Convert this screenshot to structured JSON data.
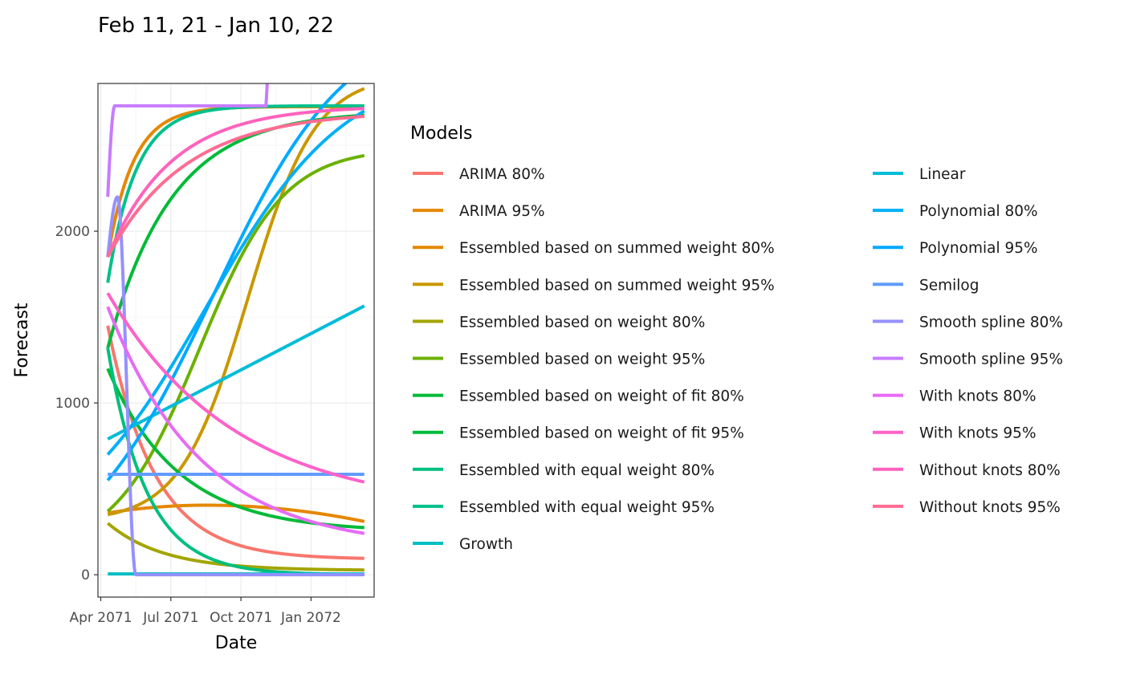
{
  "chart_data": {
    "type": "line",
    "title": "Feb 11, 21 - Jan 10, 22",
    "xlabel": "Date",
    "ylabel": "Forecast",
    "x_ticks": [
      {
        "value": 0,
        "label": "Apr 2071"
      },
      {
        "value": 0.5,
        "label": "Jul 2071"
      },
      {
        "value": 1.0,
        "label": "Oct 2071"
      },
      {
        "value": 1.5,
        "label": "Jan 2072"
      }
    ],
    "x_tick_labels": [
      "Apr 2071",
      "Jul 2071",
      "Oct 2071",
      "Jan 2072"
    ],
    "xlim": [
      -0.02,
      1.95
    ],
    "x_range": [
      0.05,
      1.88
    ],
    "y_ticks": [
      0,
      1000,
      2000
    ],
    "y_tick_labels": [
      "0",
      "1000",
      "2000"
    ],
    "ylim": [
      -130,
      2860
    ],
    "grid": true,
    "legend": {
      "title": "Models",
      "position": "right",
      "columns": 2
    },
    "series": [
      {
        "name": "ARIMA 80%",
        "color": "#F8766D",
        "model": "exp",
        "start": 1450,
        "end": 90,
        "k": 3.0
      },
      {
        "name": "ARIMA 95%",
        "color": "#E58700",
        "model": "exp",
        "start": 1850,
        "end": 2725,
        "k": 5.5
      },
      {
        "name": "Essembled based on summed weight 80%",
        "color": "#E58700",
        "model": "hump",
        "start": 360,
        "peak": 405,
        "peak_x": 0.75,
        "end": 310
      },
      {
        "name": "Essembled based on summed weight 95%",
        "color": "#C99800",
        "model": "sigmoid",
        "start": 350,
        "end": 2830,
        "mid": 1.05,
        "width": 0.24
      },
      {
        "name": "Essembled based on weight 80%",
        "color": "#A3A500",
        "model": "exp",
        "start": 300,
        "end": 25,
        "k": 2.5
      },
      {
        "name": "Essembled based on weight 95%",
        "color": "#6BB100",
        "model": "sigmoid",
        "start": 370,
        "end": 2440,
        "mid": 0.7,
        "width": 0.3
      },
      {
        "name": "Essembled based on weight of fit 80%",
        "color": "#00BA38",
        "model": "exp",
        "start": 1200,
        "end": 250,
        "k": 2.0
      },
      {
        "name": "Essembled based on weight of fit 95%",
        "color": "#00BA38",
        "model": "exp",
        "start": 1320,
        "end": 2700,
        "k": 2.2
      },
      {
        "name": "Essembled with equal weight 80%",
        "color": "#00BF7D",
        "model": "exp",
        "start": 1320,
        "end": 0,
        "k": 3.6
      },
      {
        "name": "Essembled with equal weight 95%",
        "color": "#00C08B",
        "model": "exp",
        "start": 1700,
        "end": 2730,
        "k": 5.0
      },
      {
        "name": "Growth",
        "color": "#00BFC4",
        "model": "const",
        "value": 5
      },
      {
        "name": "Linear",
        "color": "#00BCD8",
        "model": "linear",
        "start": 790,
        "end": 1565
      },
      {
        "name": "Polynomial 80%",
        "color": "#00B0F6",
        "model": "sigmoid",
        "start": 700,
        "end": 2700,
        "mid": 0.75,
        "width": 0.5
      },
      {
        "name": "Polynomial 95%",
        "color": "#00A9FF",
        "model": "sigmoid",
        "start": 550,
        "end": 2950,
        "mid": 0.8,
        "width": 0.48
      },
      {
        "name": "Semilog",
        "color": "#619CFF",
        "model": "const",
        "value": 585
      },
      {
        "name": "Smooth spline 80%",
        "color": "#9590FF",
        "model": "spike",
        "start": 1850,
        "peak": 2200,
        "peak_x": 0.12,
        "end": 0,
        "drop_x": 0.25
      },
      {
        "name": "Smooth spline 95%",
        "color": "#C77CFF",
        "model": "step",
        "start": 2200,
        "plateau": 2730,
        "rise_x": 0.1,
        "jump_x": 1.18,
        "jump_to": 3100
      },
      {
        "name": "With knots 80%",
        "color": "#E76BF3",
        "model": "exp",
        "start": 1560,
        "end": 150,
        "k": 1.5
      },
      {
        "name": "With knots 95%",
        "color": "#FF61C9",
        "model": "exp",
        "start": 1640,
        "end": 370,
        "k": 1.1
      },
      {
        "name": "Without knots 80%",
        "color": "#FF62BC",
        "model": "exp",
        "start": 1850,
        "end": 2730,
        "k": 2.2
      },
      {
        "name": "Without knots 95%",
        "color": "#FF6C91",
        "model": "exp",
        "start": 1850,
        "end": 2700,
        "k": 1.8
      }
    ]
  }
}
